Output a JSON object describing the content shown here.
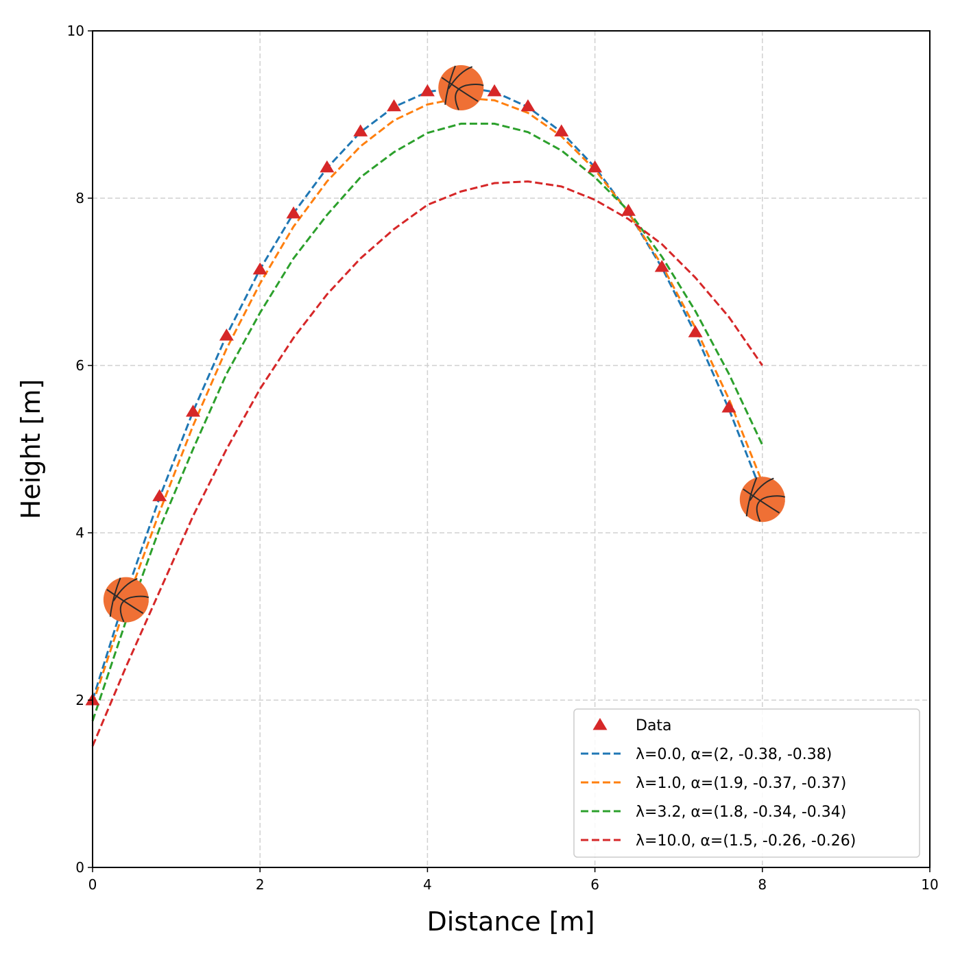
{
  "chart_data": {
    "type": "line",
    "xlabel": "Distance [m]",
    "ylabel": "Height [m]",
    "xlim": [
      0,
      10
    ],
    "ylim": [
      0,
      10
    ],
    "xticks": [
      "0",
      "2",
      "4",
      "6",
      "8",
      "10"
    ],
    "yticks": [
      "0",
      "2",
      "4",
      "6",
      "8",
      "10"
    ],
    "grid": true,
    "legend_position": "bottom-right",
    "x": [
      0,
      0.4,
      0.8,
      1.2,
      1.6,
      2.0,
      2.4,
      2.8,
      3.2,
      3.6,
      4.0,
      4.4,
      4.8,
      5.2,
      5.6,
      6.0,
      6.4,
      6.8,
      7.2,
      7.6,
      8.0
    ],
    "data": {
      "name": "Data",
      "marker": "triangle",
      "color": "#d62728",
      "values": [
        2.0,
        3.27,
        4.44,
        5.45,
        6.36,
        7.15,
        7.82,
        8.37,
        8.8,
        9.1,
        9.28,
        9.32,
        9.28,
        9.1,
        8.8,
        8.37,
        7.85,
        7.18,
        6.4,
        5.5,
        4.42
      ]
    },
    "series": [
      {
        "name": "λ=0.0, α=(2, -0.38, -0.38)",
        "color": "#1f77b4",
        "values": [
          2.0,
          3.27,
          4.42,
          5.45,
          6.36,
          7.15,
          7.82,
          8.36,
          8.79,
          9.09,
          9.27,
          9.33,
          9.27,
          9.09,
          8.79,
          8.37,
          7.83,
          7.17,
          6.38,
          5.48,
          4.46
        ]
      },
      {
        "name": "λ=1.0, α=(1.9, -0.37, -0.37)",
        "color": "#ff7f0e",
        "values": [
          1.95,
          3.15,
          4.25,
          5.28,
          6.2,
          6.98,
          7.66,
          8.2,
          8.62,
          8.93,
          9.12,
          9.2,
          9.17,
          9.02,
          8.74,
          8.34,
          7.83,
          7.2,
          6.45,
          5.6,
          4.6
        ]
      },
      {
        "name": "λ=3.2, α=(1.8, -0.34, -0.34)",
        "color": "#2ca02c",
        "values": [
          1.75,
          2.95,
          4.05,
          5.0,
          5.9,
          6.63,
          7.28,
          7.8,
          8.25,
          8.55,
          8.78,
          8.89,
          8.89,
          8.79,
          8.57,
          8.25,
          7.85,
          7.3,
          6.65,
          5.9,
          5.05
        ]
      },
      {
        "name": "λ=10.0, α=(1.5, -0.26, -0.26)",
        "color": "#d62728",
        "values": [
          1.45,
          2.4,
          3.3,
          4.2,
          5.0,
          5.72,
          6.33,
          6.85,
          7.28,
          7.63,
          7.92,
          8.08,
          8.18,
          8.2,
          8.14,
          7.98,
          7.75,
          7.45,
          7.05,
          6.58,
          6.0
        ]
      }
    ],
    "images": [
      {
        "name": "basketball-icon",
        "x": 0.4,
        "y": 3.2
      },
      {
        "name": "basketball-icon",
        "x": 4.4,
        "y": 9.32
      },
      {
        "name": "basketball-icon",
        "x": 8.0,
        "y": 4.4
      }
    ]
  }
}
